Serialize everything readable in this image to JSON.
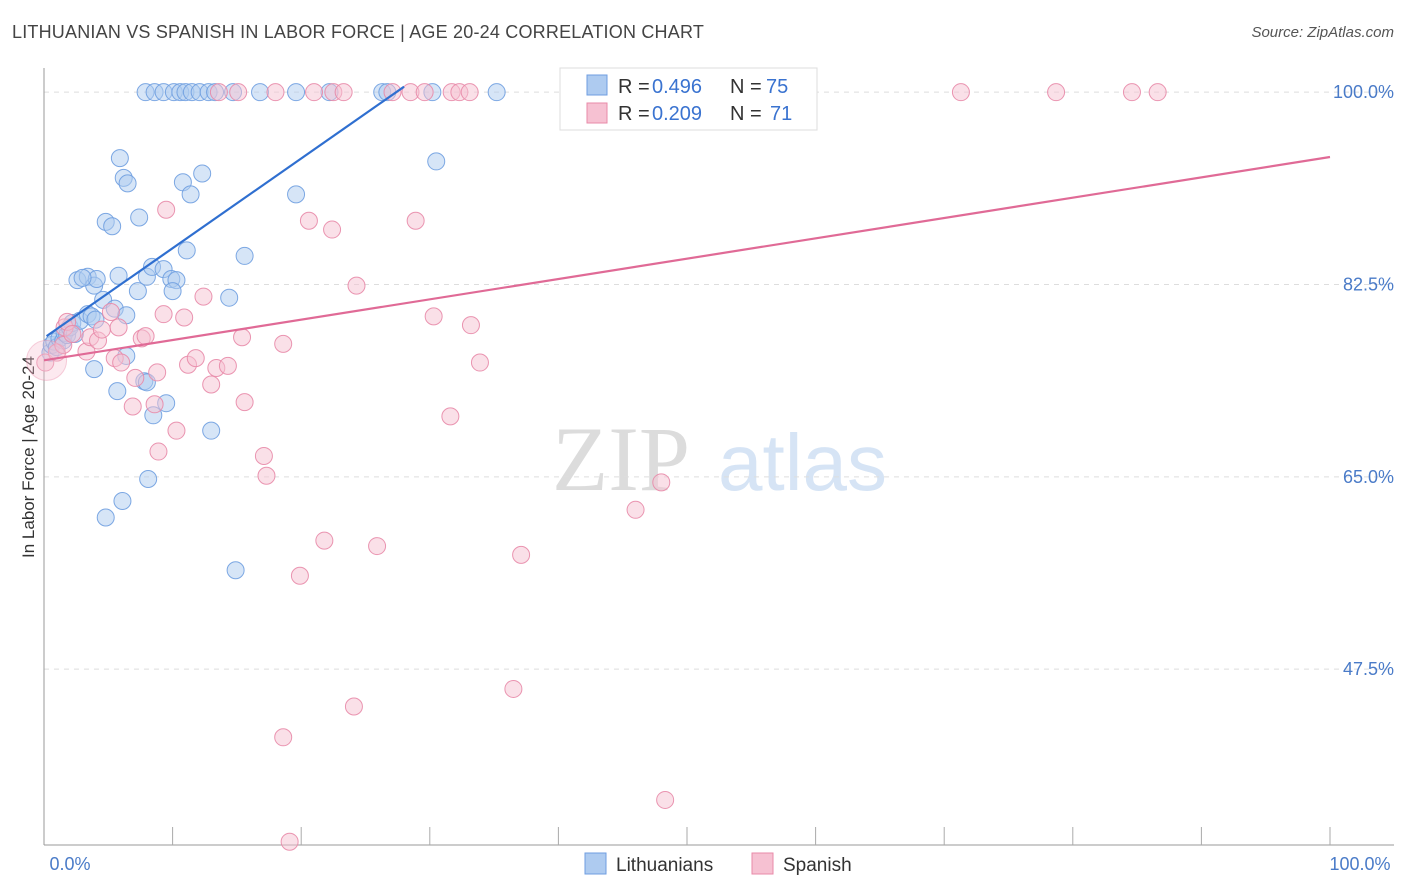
{
  "title": "LITHUANIAN VS SPANISH IN LABOR FORCE | AGE 20-24 CORRELATION CHART",
  "source": "Source: ZipAtlas.com",
  "watermark": {
    "zip": "ZIP",
    "atlas": "atlas"
  },
  "colors": {
    "lithuanian_fill": "#aecbf0",
    "lithuanian_stroke": "#6f9ee0",
    "lithuanian_line": "#2f6fd0",
    "spanish_fill": "#f6c1d2",
    "spanish_stroke": "#e88aa8",
    "spanish_line": "#e06a96",
    "tick_text": "#4a7bc8",
    "grid": "#dddddd"
  },
  "legend": {
    "rows": [
      {
        "r_label": "R = ",
        "r_value": "0.496",
        "n_label": "N = ",
        "n_value": "75"
      },
      {
        "r_label": "R = ",
        "r_value": "0.209",
        "n_label": "N = ",
        "n_value": "71"
      }
    ]
  },
  "bottom_legend": {
    "lithuanians": "Lithuanians",
    "spanish": "Spanish"
  },
  "chart_data": {
    "type": "scatter",
    "title": "LITHUANIAN VS SPANISH IN LABOR FORCE | AGE 20-24 CORRELATION CHART",
    "xlabel": "",
    "ylabel": "In Labor Force | Age 20-24",
    "xlim": [
      0,
      100
    ],
    "ylim": [
      31.5,
      102.2
    ],
    "x_tick_labels": {
      "left": "0.0%",
      "right": "100.0%"
    },
    "y_ticks": [
      {
        "value": 100.0,
        "label": "100.0%"
      },
      {
        "value": 82.5,
        "label": "82.5%"
      },
      {
        "value": 65.0,
        "label": "65.0%"
      },
      {
        "value": 47.5,
        "label": "47.5%"
      }
    ],
    "series": [
      {
        "name": "Lithuanians",
        "r": 0.496,
        "n": 75,
        "trend": {
          "x": [
            0.2,
            28.0
          ],
          "y": [
            77.8,
            100.5
          ]
        },
        "points": [
          [
            0.5,
            76.3
          ],
          [
            0.6,
            77.0
          ],
          [
            0.8,
            77.3
          ],
          [
            1.0,
            76.8
          ],
          [
            1.2,
            77.6
          ],
          [
            1.5,
            77.4
          ],
          [
            1.6,
            78.1
          ],
          [
            1.8,
            77.9
          ],
          [
            2.0,
            78.6
          ],
          [
            2.2,
            79.0
          ],
          [
            2.4,
            78.0
          ],
          [
            2.8,
            79.2
          ],
          [
            3.4,
            79.8
          ],
          [
            3.7,
            79.6
          ],
          [
            4.0,
            79.3
          ],
          [
            4.6,
            81.1
          ],
          [
            5.5,
            80.3
          ],
          [
            6.4,
            79.7
          ],
          [
            2.6,
            82.9
          ],
          [
            3.4,
            83.2
          ],
          [
            3.9,
            82.4
          ],
          [
            5.8,
            83.3
          ],
          [
            8.0,
            83.2
          ],
          [
            8.4,
            84.1
          ],
          [
            9.3,
            83.9
          ],
          [
            9.9,
            83.0
          ],
          [
            10.3,
            82.9
          ],
          [
            10.0,
            81.9
          ],
          [
            14.4,
            81.3
          ],
          [
            7.3,
            81.9
          ],
          [
            4.1,
            83.0
          ],
          [
            3.0,
            83.1
          ],
          [
            4.8,
            88.2
          ],
          [
            5.3,
            87.8
          ],
          [
            7.4,
            88.6
          ],
          [
            11.1,
            85.6
          ],
          [
            15.6,
            85.1
          ],
          [
            6.2,
            92.2
          ],
          [
            6.5,
            91.7
          ],
          [
            5.9,
            94.0
          ],
          [
            10.8,
            91.8
          ],
          [
            11.4,
            90.7
          ],
          [
            12.3,
            92.6
          ],
          [
            19.6,
            90.7
          ],
          [
            30.5,
            93.7
          ],
          [
            3.9,
            74.8
          ],
          [
            5.7,
            72.8
          ],
          [
            6.4,
            76.0
          ],
          [
            7.8,
            73.7
          ],
          [
            8.0,
            73.6
          ],
          [
            9.5,
            71.7
          ],
          [
            8.5,
            70.6
          ],
          [
            13.0,
            69.2
          ],
          [
            8.1,
            64.8
          ],
          [
            6.1,
            62.8
          ],
          [
            4.8,
            61.3
          ],
          [
            14.9,
            56.5
          ],
          [
            7.9,
            100.0
          ],
          [
            8.6,
            100.0
          ],
          [
            9.3,
            100.0
          ],
          [
            10.1,
            100.0
          ],
          [
            10.6,
            100.0
          ],
          [
            11.0,
            100.0
          ],
          [
            11.5,
            100.0
          ],
          [
            12.1,
            100.0
          ],
          [
            12.8,
            100.0
          ],
          [
            13.3,
            100.0
          ],
          [
            14.7,
            100.0
          ],
          [
            16.8,
            100.0
          ],
          [
            19.6,
            100.0
          ],
          [
            22.2,
            100.0
          ],
          [
            26.3,
            100.0
          ],
          [
            26.7,
            100.0
          ],
          [
            30.2,
            100.0
          ],
          [
            35.2,
            100.0
          ]
        ]
      },
      {
        "name": "Spanish",
        "r": 0.209,
        "n": 71,
        "trend": {
          "x": [
            0.0,
            100.0
          ],
          "y": [
            75.6,
            94.1
          ]
        },
        "points": [
          [
            0.1,
            75.4
          ],
          [
            1.0,
            76.3
          ],
          [
            1.5,
            77.0
          ],
          [
            1.6,
            78.6
          ],
          [
            1.8,
            79.1
          ],
          [
            2.2,
            78.0
          ],
          [
            3.3,
            76.4
          ],
          [
            3.6,
            77.7
          ],
          [
            4.2,
            77.4
          ],
          [
            4.5,
            78.4
          ],
          [
            5.2,
            80.0
          ],
          [
            5.5,
            75.8
          ],
          [
            5.8,
            78.6
          ],
          [
            6.0,
            75.4
          ],
          [
            6.9,
            71.4
          ],
          [
            7.1,
            74.0
          ],
          [
            7.6,
            77.6
          ],
          [
            7.9,
            77.8
          ],
          [
            8.6,
            71.6
          ],
          [
            8.8,
            74.5
          ],
          [
            8.9,
            67.3
          ],
          [
            9.3,
            79.8
          ],
          [
            9.5,
            89.3
          ],
          [
            10.3,
            69.2
          ],
          [
            10.9,
            79.5
          ],
          [
            11.2,
            75.2
          ],
          [
            11.8,
            75.8
          ],
          [
            12.4,
            81.4
          ],
          [
            13.0,
            73.4
          ],
          [
            13.4,
            74.9
          ],
          [
            14.3,
            75.1
          ],
          [
            15.4,
            77.7
          ],
          [
            15.6,
            71.8
          ],
          [
            17.1,
            66.9
          ],
          [
            17.3,
            65.1
          ],
          [
            18.6,
            77.1
          ],
          [
            20.6,
            88.3
          ],
          [
            21.8,
            59.2
          ],
          [
            22.4,
            87.5
          ],
          [
            24.3,
            82.4
          ],
          [
            25.9,
            58.7
          ],
          [
            28.9,
            88.3
          ],
          [
            30.3,
            79.6
          ],
          [
            31.6,
            70.5
          ],
          [
            33.2,
            78.8
          ],
          [
            33.9,
            75.4
          ],
          [
            19.9,
            56.0
          ],
          [
            37.1,
            57.9
          ],
          [
            36.5,
            45.7
          ],
          [
            48.0,
            64.5
          ],
          [
            46.0,
            62.0
          ],
          [
            24.1,
            44.1
          ],
          [
            18.6,
            41.3
          ],
          [
            48.3,
            35.6
          ],
          [
            19.1,
            31.8
          ],
          [
            21.0,
            100.0
          ],
          [
            22.5,
            100.0
          ],
          [
            23.3,
            100.0
          ],
          [
            27.1,
            100.0
          ],
          [
            28.5,
            100.0
          ],
          [
            29.6,
            100.0
          ],
          [
            31.7,
            100.0
          ],
          [
            32.3,
            100.0
          ],
          [
            33.1,
            100.0
          ],
          [
            13.6,
            100.0
          ],
          [
            15.1,
            100.0
          ],
          [
            18.0,
            100.0
          ],
          [
            71.3,
            100.0
          ],
          [
            78.7,
            100.0
          ],
          [
            84.6,
            100.0
          ],
          [
            86.6,
            100.0
          ]
        ]
      }
    ]
  }
}
